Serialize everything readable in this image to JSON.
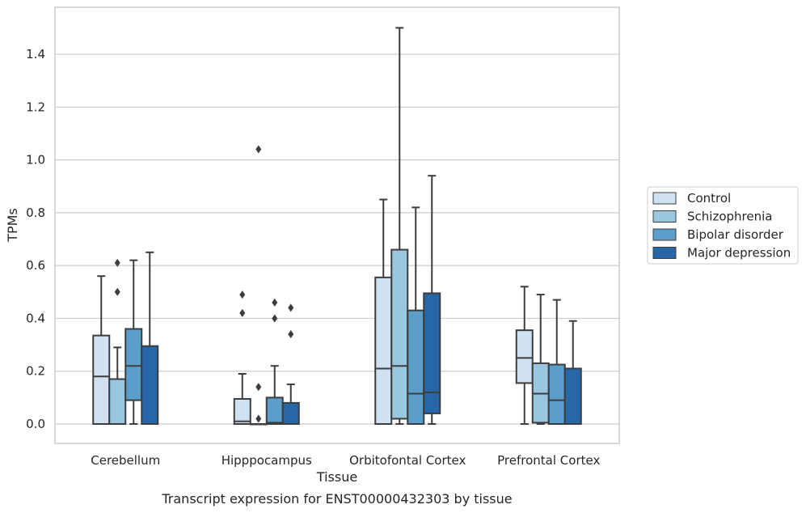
{
  "chart_data": {
    "type": "box",
    "title": "",
    "caption": "Transcript expression for ENST00000432303 by tissue",
    "xlabel": "Tissue",
    "ylabel": "TPMs",
    "ylim": [
      -0.07,
      1.58
    ],
    "yticks": [
      0.0,
      0.2,
      0.4,
      0.6,
      0.8,
      1.0,
      1.2,
      1.4
    ],
    "grid": "horizontal",
    "legend_position": "right",
    "categories": [
      "Cerebellum",
      "Hipppocampus",
      "Orbitofontal Cortex",
      "Prefrontal Cortex"
    ],
    "series": [
      {
        "name": "Control",
        "color": "#d0e1f2",
        "boxes": [
          {
            "whisker_low": 0.0,
            "q1": 0.0,
            "median": 0.18,
            "q3": 0.335,
            "whisker_high": 0.56,
            "outliers": []
          },
          {
            "whisker_low": 0.0,
            "q1": 0.0,
            "median": 0.01,
            "q3": 0.095,
            "whisker_high": 0.19,
            "outliers": [
              0.42,
              0.49
            ]
          },
          {
            "whisker_low": 0.0,
            "q1": 0.0,
            "median": 0.21,
            "q3": 0.555,
            "whisker_high": 0.85,
            "outliers": []
          },
          {
            "whisker_low": 0.0,
            "q1": 0.155,
            "median": 0.25,
            "q3": 0.355,
            "whisker_high": 0.52,
            "outliers": []
          }
        ]
      },
      {
        "name": "Schizophrenia",
        "color": "#9ac7e0",
        "boxes": [
          {
            "whisker_low": 0.0,
            "q1": 0.0,
            "median": 0.0,
            "q3": 0.17,
            "whisker_high": 0.29,
            "outliers": [
              0.5,
              0.61
            ]
          },
          {
            "whisker_low": 0.0,
            "q1": 0.0,
            "median": 0.0,
            "q3": 0.0,
            "whisker_high": 0.0,
            "outliers": [
              0.02,
              0.14,
              1.04
            ]
          },
          {
            "whisker_low": 0.0,
            "q1": 0.02,
            "median": 0.22,
            "q3": 0.66,
            "whisker_high": 1.5,
            "outliers": []
          },
          {
            "whisker_low": 0.0,
            "q1": 0.005,
            "median": 0.115,
            "q3": 0.23,
            "whisker_high": 0.49,
            "outliers": []
          }
        ]
      },
      {
        "name": "Bipolar disorder",
        "color": "#5a9ec9",
        "boxes": [
          {
            "whisker_low": 0.0,
            "q1": 0.09,
            "median": 0.22,
            "q3": 0.36,
            "whisker_high": 0.62,
            "outliers": []
          },
          {
            "whisker_low": 0.0,
            "q1": 0.0,
            "median": 0.005,
            "q3": 0.1,
            "whisker_high": 0.22,
            "outliers": [
              0.4,
              0.46
            ]
          },
          {
            "whisker_low": 0.0,
            "q1": 0.0,
            "median": 0.115,
            "q3": 0.43,
            "whisker_high": 0.82,
            "outliers": []
          },
          {
            "whisker_low": 0.0,
            "q1": 0.0,
            "median": 0.09,
            "q3": 0.225,
            "whisker_high": 0.47,
            "outliers": []
          }
        ]
      },
      {
        "name": "Major depression",
        "color": "#2767a8",
        "boxes": [
          {
            "whisker_low": 0.0,
            "q1": 0.0,
            "median": 0.0,
            "q3": 0.295,
            "whisker_high": 0.65,
            "outliers": []
          },
          {
            "whisker_low": 0.0,
            "q1": 0.0,
            "median": 0.0,
            "q3": 0.08,
            "whisker_high": 0.15,
            "outliers": [
              0.34,
              0.44
            ]
          },
          {
            "whisker_low": 0.0,
            "q1": 0.04,
            "median": 0.12,
            "q3": 0.495,
            "whisker_high": 0.94,
            "outliers": []
          },
          {
            "whisker_low": 0.0,
            "q1": 0.0,
            "median": 0.0,
            "q3": 0.21,
            "whisker_high": 0.39,
            "outliers": []
          }
        ]
      }
    ]
  }
}
